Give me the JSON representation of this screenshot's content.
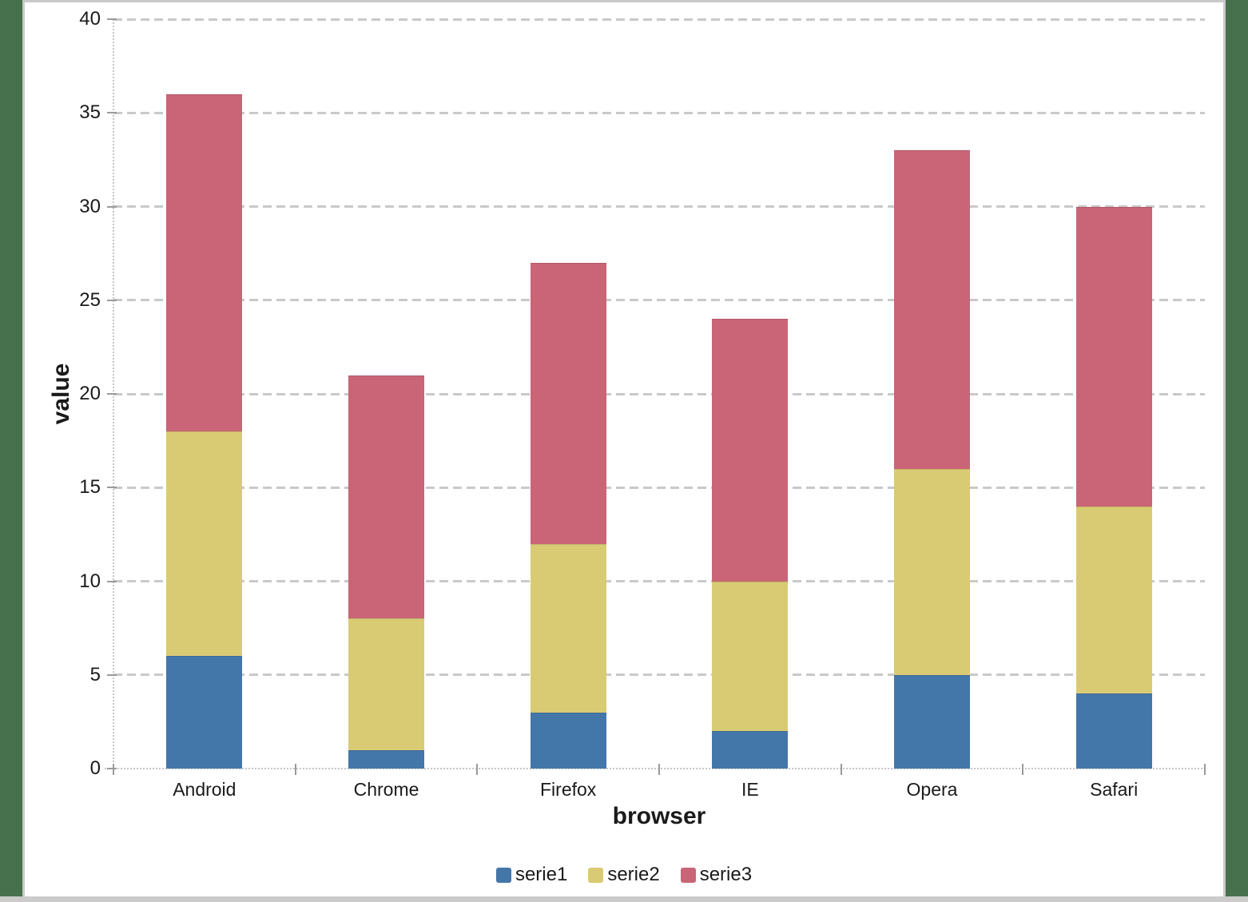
{
  "frame": {
    "background_color": "#47704D",
    "panel_border_color": "#C9C9C9",
    "panel_background": "#FFFFFF",
    "bottom_strip_color": "#CBCBCB"
  },
  "chart_data": {
    "type": "bar",
    "stacked": true,
    "xlabel": "browser",
    "ylabel": "value",
    "categories": [
      "Android",
      "Chrome",
      "Firefox",
      "IE",
      "Opera",
      "Safari"
    ],
    "series": [
      {
        "name": "serie1",
        "color": "#4477A9",
        "values": [
          6,
          1,
          3,
          2,
          5,
          4
        ]
      },
      {
        "name": "serie2",
        "color": "#D9CB74",
        "values": [
          12,
          7,
          9,
          8,
          11,
          10
        ]
      },
      {
        "name": "serie3",
        "color": "#C96576",
        "values": [
          18,
          13,
          15,
          14,
          17,
          16
        ]
      }
    ],
    "stack_totals": [
      36,
      21,
      27,
      24,
      33,
      30
    ],
    "ylim": [
      0,
      40
    ],
    "yticks": [
      0,
      5,
      10,
      15,
      20,
      25,
      30,
      35,
      40
    ],
    "grid": "horizontal-dashed",
    "gridline_color": "#C9C9C9",
    "tick_color": "#9A9A9A",
    "text_color": "#1a1a1a",
    "legend_position": "bottom"
  }
}
